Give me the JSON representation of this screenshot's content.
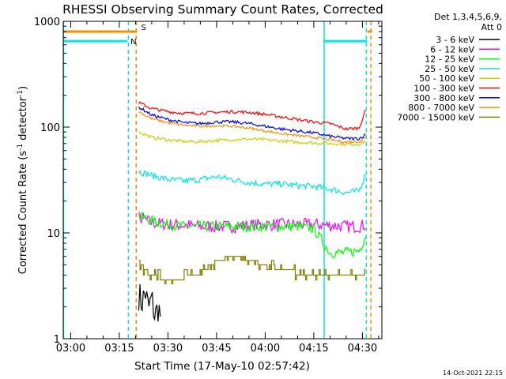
{
  "chart_data": {
    "type": "line",
    "title": "RHESSI Observing Summary Count Rates, Corrected",
    "xlabel": "Start Time (17-May-10 02:57:42)",
    "ylabel_main": "Corrected Count Rate (s",
    "ylabel_sup1": "-1",
    "ylabel_mid": " detector",
    "ylabel_sup2": "-1",
    "ylabel_end": ")",
    "yscale": "log",
    "ylim": [
      1,
      1000
    ],
    "xlim_minutes": [
      -2.3,
      38
    ],
    "x_ticks": [
      "03:00",
      "03:15",
      "03:30",
      "03:45",
      "04:00",
      "04:15",
      "04:30"
    ],
    "x_tick_minutes": [
      0,
      15,
      30,
      45,
      60,
      75,
      90
    ],
    "y_ticks": [
      "1",
      "10",
      "100",
      "1000"
    ],
    "y_tick_values": [
      1,
      10,
      100,
      1000
    ],
    "legend": {
      "title_line1": "Det 1,3,4,5,6,9,",
      "title_line2": "Att 0",
      "placement": "outside-right"
    },
    "timestamp": "14-Oct-2021 22:15",
    "flags": [
      {
        "label": "S",
        "color": "#ff8c00",
        "level": 800,
        "segments": [
          [
            -2.3,
            20.5
          ],
          [
            91.5,
            93
          ]
        ]
      },
      {
        "label": "N",
        "color": "#00e5ee",
        "level": 650,
        "segments": [
          [
            -2.3,
            17.5
          ],
          [
            78,
            91.5
          ]
        ]
      }
    ],
    "vlines": [
      {
        "x": -2.2,
        "color": "#00e5ee",
        "style": "solid"
      },
      {
        "x": 17.8,
        "color": "#00e5ee",
        "style": "dashed"
      },
      {
        "x": 20.2,
        "color": "#ff8c00",
        "style": "dashed"
      },
      {
        "x": 78.2,
        "color": "#00e5ee",
        "style": "solid"
      },
      {
        "x": 91.2,
        "color": "#00e5ee",
        "style": "dashed"
      },
      {
        "x": 92.6,
        "color": "#ff8c00",
        "style": "dashed"
      }
    ],
    "x": [
      21,
      25,
      30,
      35,
      40,
      45,
      50,
      55,
      60,
      65,
      70,
      75,
      80,
      85,
      89,
      91
    ],
    "series": [
      {
        "name": "3 - 6 keV",
        "color": "#000000",
        "noise": 0.15,
        "x": [
          21,
          22,
          23,
          24,
          25,
          26,
          27,
          28
        ],
        "values": [
          2.6,
          2.2,
          2.8,
          1.9,
          2.4,
          1.6,
          2.0,
          1.5
        ]
      },
      {
        "name": "6 - 12 keV",
        "color": "#ff00ff",
        "noise": 0.06,
        "values": [
          14,
          12.5,
          12,
          11.8,
          11.5,
          11.5,
          11.5,
          11.8,
          12,
          12,
          12,
          12,
          11.8,
          11.5,
          11.5,
          12
        ]
      },
      {
        "name": "12 - 25 keV",
        "color": "#00ff00",
        "noise": 0.05,
        "values": [
          14.5,
          13,
          12,
          11.5,
          11.5,
          11.5,
          11.5,
          11.5,
          11.5,
          11.5,
          11.5,
          11,
          6.5,
          6.5,
          6.8,
          9.5
        ]
      },
      {
        "name": "25 - 50 keV",
        "color": "#00e5ee",
        "noise": 0.03,
        "values": [
          38,
          35,
          32,
          31,
          32,
          34,
          32,
          30,
          29,
          29,
          28,
          27.5,
          26,
          24,
          25,
          36
        ]
      },
      {
        "name": "50 - 100 keV",
        "color": "#cccc00",
        "noise": 0.015,
        "values": [
          90,
          80,
          76,
          73,
          73,
          75,
          76,
          77,
          76,
          74,
          72,
          71,
          70,
          69,
          69,
          74
        ]
      },
      {
        "name": "100 - 300 keV",
        "color": "#ff0000",
        "noise": 0.015,
        "values": [
          170,
          150,
          140,
          135,
          135,
          138,
          140,
          138,
          132,
          125,
          118,
          112,
          108,
          96,
          98,
          145
        ]
      },
      {
        "name": "300 - 800 keV",
        "color": "#0000ff",
        "noise": 0.015,
        "values": [
          155,
          130,
          118,
          110,
          108,
          112,
          112,
          108,
          102,
          96,
          92,
          88,
          82,
          78,
          78,
          85
        ]
      },
      {
        "name": "800 - 7000 keV",
        "color": "#ff8c00",
        "noise": 0.012,
        "values": [
          140,
          120,
          110,
          104,
          102,
          103,
          102,
          98,
          92,
          87,
          83,
          80,
          76,
          72,
          73,
          80
        ]
      },
      {
        "name": "7000 - 15000 keV",
        "color": "#808000",
        "noise": 0.0,
        "step": true,
        "values": [
          5.2,
          4.0,
          3.6,
          3.8,
          4.2,
          5.5,
          6.0,
          5.5,
          5.0,
          4.5,
          4.2,
          4.0,
          3.8,
          3.9,
          3.8,
          4.5
        ]
      }
    ]
  }
}
